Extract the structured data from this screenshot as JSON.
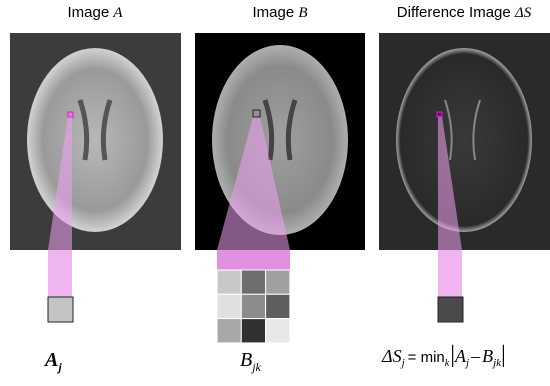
{
  "panels": [
    {
      "title": "Image",
      "title_var": "A",
      "label": "A",
      "label_sub": "j"
    },
    {
      "title": "Image",
      "title_var": "B",
      "label": "B",
      "label_sub": "jk"
    },
    {
      "title": "Difference Image",
      "title_var": "ΔS"
    }
  ],
  "formula": {
    "lhs": "ΔS",
    "lhs_sub": "j",
    "op": "= min",
    "op_sub": "k",
    "bar_open": "|",
    "a": "A",
    "a_sub": "j",
    "minus": "–",
    "b": "B",
    "b_sub": "jk",
    "bar_close": "|"
  }
}
